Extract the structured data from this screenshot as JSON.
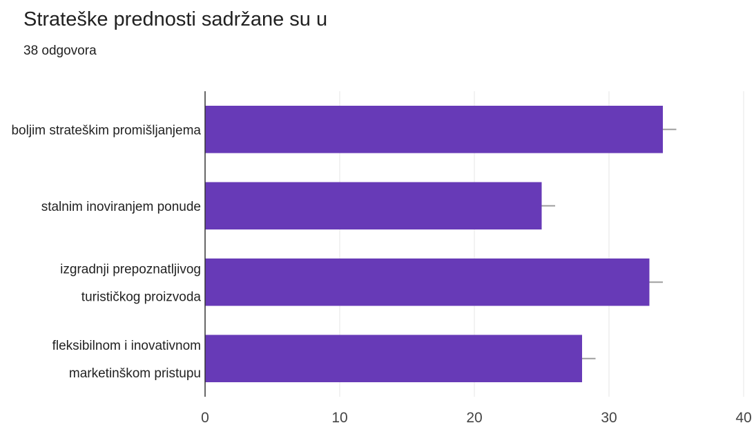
{
  "chart_data": {
    "type": "bar",
    "orientation": "horizontal",
    "title": "Strateške prednosti sadržane su u",
    "subtitle": "38 odgovora",
    "categories": [
      [
        "boljim strateškim promišljanjema"
      ],
      [
        "stalnim inoviranjem ponude"
      ],
      [
        "izgradnji prepoznatljivog",
        "turističkog proizvoda"
      ],
      [
        "fleksibilnom i inovativnom",
        "marketinškom pristupu"
      ]
    ],
    "values": [
      34,
      25,
      33,
      28
    ],
    "error_high": [
      35,
      26,
      34,
      29
    ],
    "xlim": [
      0,
      40
    ],
    "xticks": [
      "0",
      "10",
      "20",
      "30",
      "40"
    ],
    "grid": true,
    "legend": "none",
    "colors": {
      "bar": "#673ab7",
      "error": "#9e9e9e",
      "grid": "#e6e6e6",
      "axis": "#333333"
    }
  }
}
